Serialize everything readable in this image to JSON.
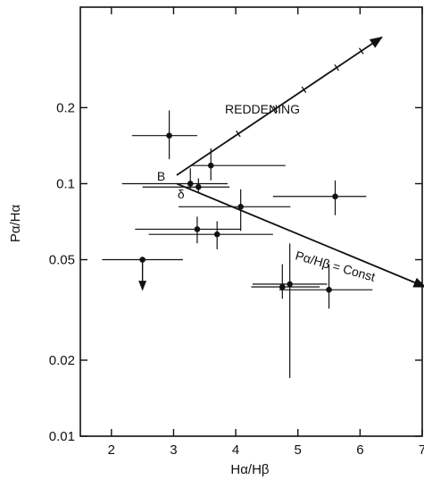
{
  "chart_data": {
    "type": "scatter",
    "title": "",
    "xlabel": "Hα/Hβ",
    "ylabel": "Pα/Hα",
    "xlim": [
      1.5,
      7.0
    ],
    "ylim": [
      0.01,
      0.5
    ],
    "yscale": "log",
    "grid": false,
    "x_ticks": [
      2,
      3,
      4,
      5,
      6,
      7
    ],
    "x_tick_labels": [
      "2",
      "3",
      "4",
      "5",
      "6",
      "7"
    ],
    "y_ticks": [
      0.01,
      0.02,
      0.05,
      0.1,
      0.2
    ],
    "y_tick_labels": [
      "0.01",
      "0.02",
      "0.05",
      "0.1",
      "0.2"
    ],
    "points": [
      {
        "x": 2.93,
        "y": 0.155,
        "xerr": [
          0.6,
          0.45
        ],
        "yerr": [
          0.03,
          0.04
        ]
      },
      {
        "x": 3.6,
        "y": 0.118,
        "xerr": [
          0.3,
          1.2
        ],
        "yerr": [
          0.015,
          0.02
        ]
      },
      {
        "x": 3.27,
        "y": 0.1,
        "xerr": [
          1.1,
          0.6
        ],
        "yerr": [
          0.005,
          0.015
        ]
      },
      {
        "x": 3.4,
        "y": 0.097,
        "xerr": [
          0.9,
          0.5
        ],
        "yerr": [
          0.005,
          0.008
        ]
      },
      {
        "x": 4.08,
        "y": 0.081,
        "xerr": [
          1.0,
          0.8
        ],
        "yerr": [
          0.016,
          0.014
        ]
      },
      {
        "x": 5.6,
        "y": 0.089,
        "xerr": [
          1.0,
          0.5
        ],
        "yerr": [
          0.014,
          0.014
        ]
      },
      {
        "x": 3.38,
        "y": 0.066,
        "xerr": [
          1.0,
          0.7
        ],
        "yerr": [
          0.008,
          0.008
        ]
      },
      {
        "x": 3.7,
        "y": 0.063,
        "xerr": [
          1.1,
          0.9
        ],
        "yerr": [
          0.008,
          0.008
        ]
      },
      {
        "x": 4.87,
        "y": 0.04,
        "xerr": [
          0.6,
          0.6
        ],
        "yerr": [
          0.023,
          0.018
        ]
      },
      {
        "x": 4.75,
        "y": 0.039,
        "xerr": [
          0.5,
          0.6
        ],
        "yerr": [
          0.004,
          0.009
        ]
      },
      {
        "x": 5.5,
        "y": 0.038,
        "xerr": [
          0.8,
          0.7
        ],
        "yerr": [
          0.006,
          0.01
        ]
      }
    ],
    "upper_limits": [
      {
        "x": 2.5,
        "y": 0.05,
        "xerr": [
          0.65,
          0.65
        ],
        "arrow_to": 0.038
      }
    ],
    "reddening_line": {
      "x": [
        3.05,
        6.35
      ],
      "y": [
        0.108,
        0.38
      ],
      "label": "REDDENING"
    },
    "const_line": {
      "x": [
        3.05,
        7.05
      ],
      "y": [
        0.1,
        0.039
      ],
      "label": "Pα/Hβ = Const"
    },
    "point_labels": [
      {
        "text": "B",
        "x": 2.8,
        "y": 0.107
      },
      {
        "text": "δ",
        "x": 3.12,
        "y": 0.091
      }
    ]
  }
}
